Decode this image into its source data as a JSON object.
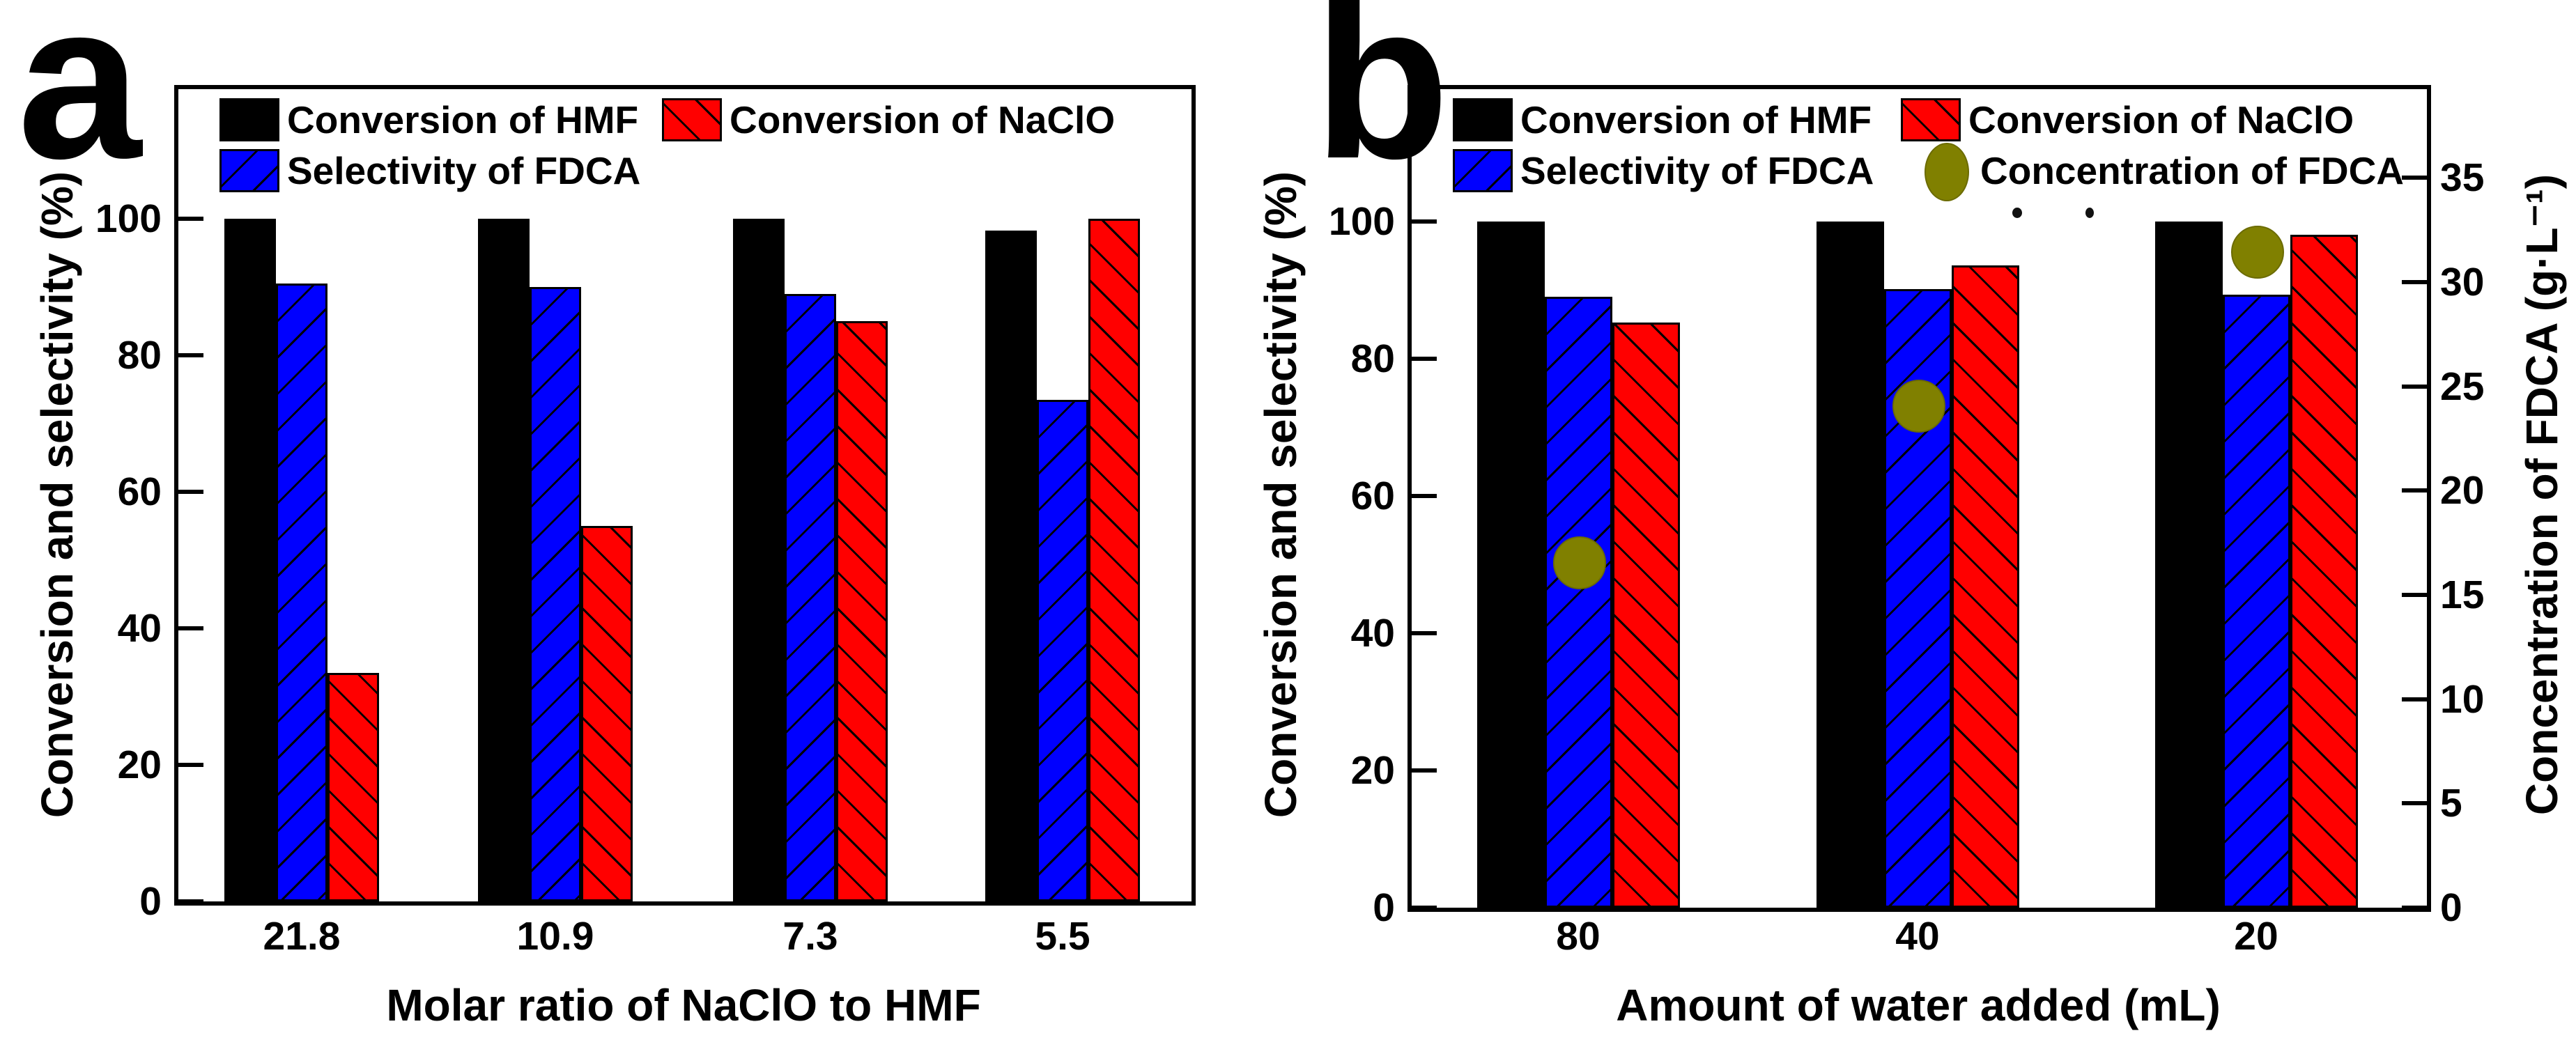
{
  "panels": {
    "a": {
      "letter": "a"
    },
    "b": {
      "letter": "b"
    }
  },
  "colors": {
    "hmf_bar": "#000000",
    "fdca_selectivity_bar": "#0000ff",
    "naclo_bar": "#ff0000",
    "fdca_concentration_marker": "#808000",
    "axis": "#000000",
    "background": "#ffffff"
  },
  "chart_data": [
    {
      "type": "bar",
      "panel": "a",
      "title": "",
      "xlabel": "Molar ratio of NaClO to HMF",
      "ylabel": "Conversion and selectivity (%)",
      "categories": [
        "21.8",
        "10.9",
        "7.3",
        "5.5"
      ],
      "series": [
        {
          "name": "Conversion of HMF",
          "color": "#000000",
          "hatch": "none",
          "values": [
            100,
            100,
            100,
            98.3
          ]
        },
        {
          "name": "Selectivity of FDCA",
          "color": "#0000ff",
          "hatch": "/",
          "values": [
            90.5,
            90,
            89,
            73.5
          ]
        },
        {
          "name": "Conversion of NaClO",
          "color": "#ff0000",
          "hatch": "\\",
          "values": [
            33.5,
            55,
            85,
            100
          ]
        }
      ],
      "yticks": [
        0,
        20,
        40,
        60,
        80,
        100
      ],
      "ylim": [
        0,
        119
      ],
      "grid": false,
      "legend_position": "upper-left-inside"
    },
    {
      "type": "bar+scatter",
      "panel": "b",
      "title": "",
      "xlabel": "Amount of water added (mL)",
      "ylabel": "Conversion and selectivity (%)",
      "ylabel_right": "Concentration of FDCA (g·L⁻¹)",
      "categories": [
        "80",
        "40",
        "20"
      ],
      "series": [
        {
          "name": "Conversion of HMF",
          "color": "#000000",
          "hatch": "none",
          "values": [
            100,
            100,
            100
          ]
        },
        {
          "name": "Selectivity of FDCA",
          "color": "#0000ff",
          "hatch": "/",
          "values": [
            89,
            90.2,
            89.3
          ]
        },
        {
          "name": "Conversion of NaClO",
          "color": "#ff0000",
          "hatch": "\\",
          "values": [
            85.3,
            93.6,
            98.1
          ]
        }
      ],
      "scatter": {
        "name": "Concentration of FDCA",
        "color": "#808000",
        "axis": "right",
        "values": [
          16.6,
          24.1,
          31.5
        ]
      },
      "yticks": [
        0,
        20,
        40,
        60,
        80,
        100
      ],
      "yticks_right": [
        0,
        5,
        10,
        15,
        20,
        25,
        30,
        35
      ],
      "ylim": [
        0,
        119.6
      ],
      "ylim_right": [
        0,
        39.3
      ],
      "grid": false,
      "legend_position": "upper-inside"
    }
  ]
}
